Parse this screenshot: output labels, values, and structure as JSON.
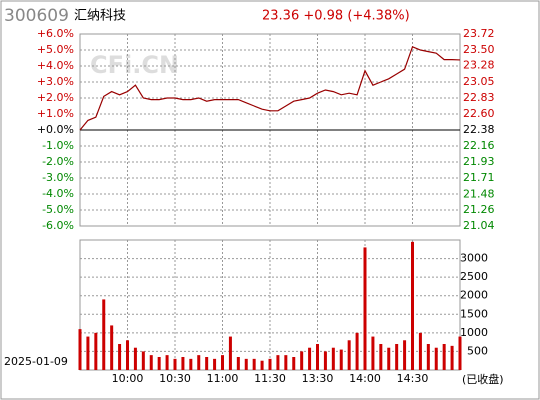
{
  "chart_data": [
    {
      "type": "line",
      "title": "300609",
      "subtitle": "汇纳科技",
      "quote": "23.36 +0.98 (+4.38%)",
      "watermark": "CFi.CN",
      "color": "#990000",
      "up_color": "#cc0000",
      "down_color": "#008800",
      "xlim": [
        0,
        240
      ],
      "x": [
        0,
        5,
        10,
        15,
        20,
        25,
        30,
        35,
        40,
        45,
        50,
        55,
        60,
        65,
        70,
        75,
        80,
        85,
        90,
        95,
        100,
        105,
        110,
        115,
        120,
        125,
        130,
        135,
        140,
        145,
        150,
        155,
        160,
        165,
        170,
        175,
        180,
        185,
        190,
        195,
        200,
        205,
        210,
        215,
        220,
        225,
        230,
        235,
        240
      ],
      "values": [
        0,
        0.6,
        0.8,
        2.1,
        2.4,
        2.2,
        2.4,
        2.8,
        2.0,
        1.9,
        1.9,
        2.0,
        2.0,
        1.9,
        1.9,
        2.0,
        1.8,
        1.9,
        1.9,
        1.9,
        1.9,
        1.7,
        1.5,
        1.3,
        1.2,
        1.2,
        1.5,
        1.8,
        1.9,
        2.0,
        2.3,
        2.5,
        2.4,
        2.2,
        2.3,
        2.2,
        3.7,
        2.8,
        3.0,
        3.2,
        3.5,
        3.8,
        5.2,
        5.0,
        4.9,
        4.8,
        4.4,
        4.4,
        4.38
      ],
      "ylim": [
        -6,
        6
      ],
      "yticks": [
        {
          "value": 6,
          "label": "+6.0%"
        },
        {
          "value": 5,
          "label": "+5.0%"
        },
        {
          "value": 4,
          "label": "+4.0%"
        },
        {
          "value": 3,
          "label": "+3.0%"
        },
        {
          "value": 2,
          "label": "+2.0%"
        },
        {
          "value": 1,
          "label": "+1.0%"
        },
        {
          "value": 0,
          "label": "+0.0%"
        },
        {
          "value": -1,
          "label": "-1.0%"
        },
        {
          "value": -2,
          "label": "-2.0%"
        },
        {
          "value": -3,
          "label": "-3.0%"
        },
        {
          "value": -4,
          "label": "-4.0%"
        },
        {
          "value": -5,
          "label": "-5.0%"
        },
        {
          "value": -6,
          "label": "-6.0%"
        }
      ],
      "y2lim": [
        21.04,
        23.72
      ],
      "y2ticks": [
        23.72,
        {
          "value": 23.5,
          "label": "23.50"
        },
        23.28,
        23.05,
        22.83,
        {
          "value": 22.6,
          "label": "22.60"
        },
        22.38,
        22.16,
        21.93,
        21.71,
        21.48,
        21.26,
        21.04
      ],
      "grid": true
    },
    {
      "type": "bar",
      "date": "2025-01-09",
      "status": "(已收盘)",
      "color": "#cc0000",
      "xlim": [
        0,
        240
      ],
      "x": [
        0,
        5,
        10,
        15,
        20,
        25,
        30,
        35,
        40,
        45,
        50,
        55,
        60,
        65,
        70,
        75,
        80,
        85,
        90,
        95,
        100,
        105,
        110,
        115,
        120,
        125,
        130,
        135,
        140,
        145,
        150,
        155,
        160,
        165,
        170,
        175,
        180,
        185,
        190,
        195,
        200,
        205,
        210,
        215,
        220,
        225,
        230,
        235,
        240
      ],
      "values": [
        1100,
        900,
        1000,
        1900,
        1200,
        700,
        800,
        600,
        500,
        400,
        350,
        400,
        300,
        350,
        300,
        400,
        350,
        300,
        400,
        900,
        350,
        300,
        300,
        250,
        300,
        400,
        400,
        350,
        500,
        600,
        700,
        500,
        600,
        550,
        800,
        1000,
        3300,
        900,
        700,
        600,
        700,
        800,
        3450,
        1000,
        700,
        600,
        700,
        650,
        900
      ],
      "xticks": [
        {
          "value": 30,
          "label": "10:00"
        },
        {
          "value": 60,
          "label": "10:30"
        },
        {
          "value": 90,
          "label": "11:00"
        },
        {
          "value": 120,
          "label": "11:30"
        },
        {
          "value": 150,
          "label": "13:30"
        },
        {
          "value": 180,
          "label": "14:00"
        },
        {
          "value": 210,
          "label": "14:30"
        }
      ],
      "ylim": [
        0,
        3500
      ],
      "yticks": [
        500,
        1000,
        1500,
        2000,
        2500,
        3000
      ],
      "grid": true
    }
  ]
}
